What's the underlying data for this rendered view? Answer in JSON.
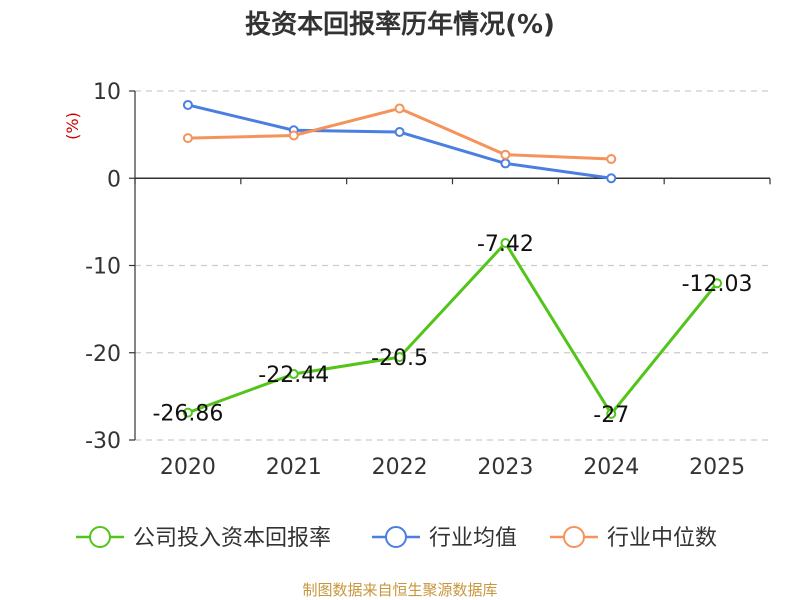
{
  "chart_data": {
    "type": "line",
    "title": "投资本回报率历年情况(%)",
    "ylabel": "(%)",
    "categories": [
      "2020",
      "2021",
      "2022",
      "2023",
      "2024",
      "2025"
    ],
    "ylim": [
      -30,
      10
    ],
    "yticks": [
      "10",
      "0",
      "-10",
      "-20",
      "-30"
    ],
    "yticks_values": [
      10,
      0,
      -10,
      -20,
      -30
    ],
    "grid": true,
    "legend_position": "bottom",
    "series": [
      {
        "name": "公司投入资本回报率",
        "color": "#52c41a",
        "values": [
          -26.86,
          -22.44,
          -20.5,
          -7.42,
          -27,
          -12.03
        ],
        "labels": [
          "-26.86",
          "-22.44",
          "-20.5",
          "-7.42",
          "-27",
          "-12.03"
        ]
      },
      {
        "name": "行业均值",
        "color": "#4a7ee0",
        "values": [
          8.4,
          5.5,
          5.3,
          1.7,
          0.0,
          null
        ]
      },
      {
        "name": "行业中位数",
        "color": "#f5935a",
        "values": [
          4.6,
          4.9,
          8.0,
          2.7,
          2.2,
          null
        ]
      }
    ],
    "source": "制图数据来自恒生聚源数据库"
  }
}
